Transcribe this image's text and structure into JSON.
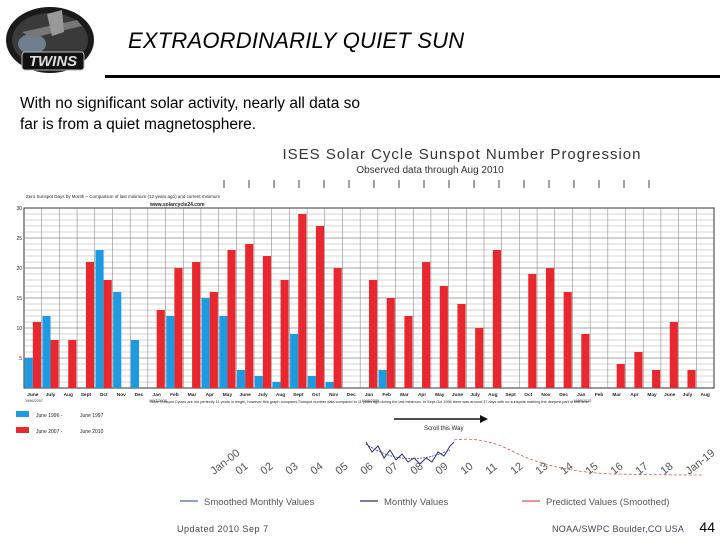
{
  "slide": {
    "title": "EXTRAORDINARILY QUIET SUN",
    "subtitle": "With no significant solar activity, nearly all data so far is from a quiet magnetosphere.",
    "page_number": "44",
    "logo_text": "TWINS"
  },
  "colors": {
    "cycle_2007": "#e8282e",
    "cycle_1996": "#1e9be0",
    "grid": "#333333",
    "predicted": "#e05050",
    "monthly": "#2a2a80"
  },
  "chart_data": {
    "type": "bar",
    "title": "ISES Solar Cycle Sunspot Number Progression",
    "subtitle": "Observed data through Aug 2010",
    "note": "Zero Sunspot Days by Month – Comparison of last minimum (12 years ago) and current minimum",
    "website": "www.solarcycle24.com",
    "ylim": [
      0,
      30
    ],
    "yticks": [
      "5",
      "10",
      "15",
      "20",
      "25",
      "30"
    ],
    "month_labels": [
      "June",
      "July",
      "Aug",
      "Sept",
      "Oct",
      "Nov",
      "Dec",
      "Jan",
      "Feb",
      "Mar",
      "Apr",
      "May",
      "June",
      "July",
      "Aug",
      "Sept",
      "Oct",
      "Nov",
      "Dec",
      "Jan",
      "Feb",
      "Mar",
      "Apr",
      "May",
      "June",
      "July",
      "Aug",
      "Sept",
      "Oct",
      "Nov",
      "Dec",
      "Jan",
      "Feb",
      "Mar",
      "Apr",
      "May",
      "June",
      "July",
      "Aug"
    ],
    "year_labels": [
      {
        "index": 0,
        "text": "1996/2007"
      },
      {
        "index": 7,
        "text": "1997/2008"
      },
      {
        "index": 19,
        "text": "1998/2009"
      },
      {
        "index": 31,
        "text": "1999/2010"
      }
    ],
    "series": [
      {
        "name": "June 1996 - June 1997",
        "values": [
          5,
          12,
          0,
          0,
          23,
          16,
          8,
          0,
          12,
          0,
          15,
          12,
          3,
          2,
          1,
          9,
          2,
          1,
          0,
          0,
          3,
          0,
          0,
          0,
          0,
          0,
          0,
          0,
          0,
          0,
          0,
          0,
          0,
          0,
          0,
          0,
          0,
          0,
          0
        ]
      },
      {
        "name": "June 2007 - June 2010",
        "values": [
          11,
          8,
          8,
          21,
          18,
          0,
          0,
          13,
          20,
          21,
          16,
          23,
          24,
          22,
          18,
          29,
          27,
          20,
          0,
          18,
          15,
          12,
          21,
          17,
          14,
          10,
          23,
          0,
          19,
          20,
          16,
          9,
          0,
          4,
          6,
          3,
          11,
          3,
          0
        ]
      }
    ],
    "legend": {
      "row1_left": "June 1996 -",
      "row1_right": "June 1997",
      "row2_left": "June 2007 -",
      "row2_right": "June 2010"
    },
    "annotation": "Solar Sunspot Cycles are not perfectly 11 years in length, however this graph compares Sunspot number data compared to 11 years ago during the last minimum. In Sept-Oct 1996 there was around 37 days with no sunspots marking the deepest part of that time.",
    "scroll_label": "Scroll this Way",
    "lower_ticks": [
      "Jan-00",
      "01",
      "02",
      "03",
      "04",
      "05",
      "06",
      "07",
      "08",
      "09",
      "10",
      "11",
      "12",
      "13",
      "14",
      "15",
      "16",
      "17",
      "18",
      "Jan-19"
    ],
    "lower_legend": [
      "Smoothed Monthly Values",
      "Monthly Values",
      "Predicted Values (Smoothed)"
    ],
    "footer_left": "Updated 2010 Sep 7",
    "footer_right": "NOAA/SWPC Boulder,CO USA"
  }
}
